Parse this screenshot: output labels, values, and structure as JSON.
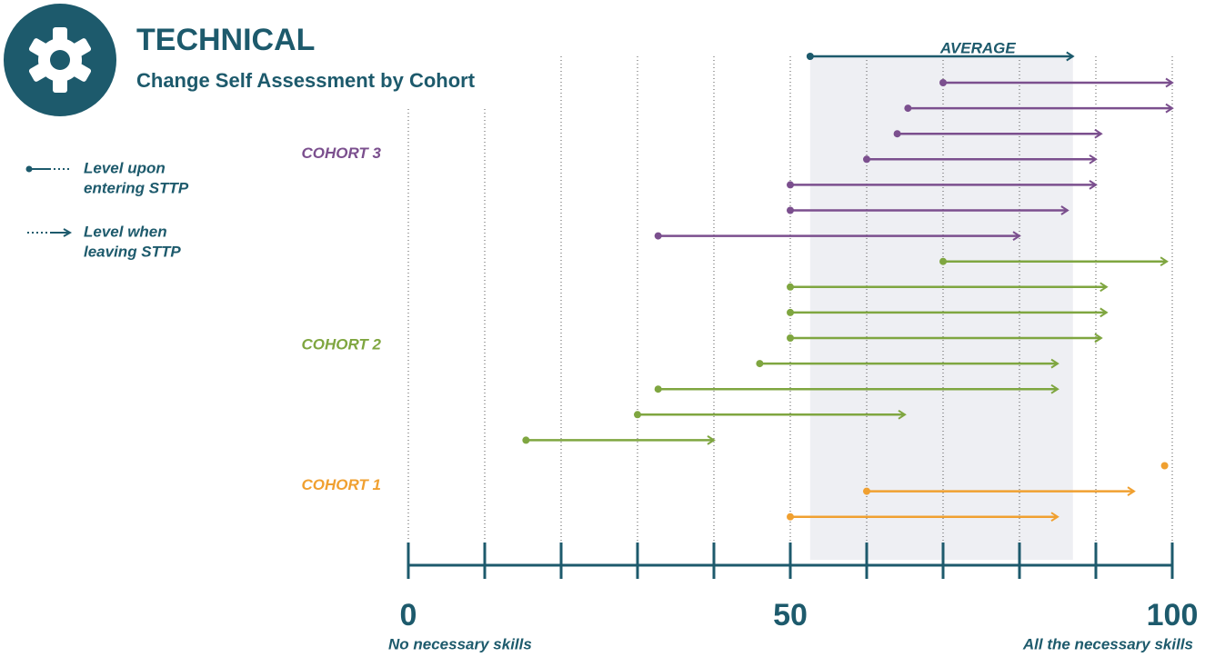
{
  "chart_data": {
    "type": "arrow",
    "title": "TECHNICAL",
    "subtitle": "Change Self Assessment by Cohort",
    "legend_items": [
      [
        "Level upon",
        "entering STTP"
      ],
      [
        "Level when",
        "leaving STTP"
      ]
    ],
    "legend_color": "#1d5a6c",
    "average": {
      "label": "AVERAGE",
      "start": 52.6,
      "end": 87,
      "color": "#1d5a6c",
      "band_color": "#eeeff3"
    },
    "series": [
      {
        "name": "COHORT 3",
        "color": "#7b4f8e",
        "start": [
          70,
          65.4,
          64,
          60,
          50,
          50,
          32.7
        ],
        "end": [
          100,
          100,
          90.7,
          90,
          90,
          86.3,
          80
        ]
      },
      {
        "name": "COHORT 2",
        "color": "#7fa640",
        "start": [
          70,
          50,
          50,
          50,
          46,
          32.7,
          30,
          15.4
        ],
        "end": [
          99.3,
          91.4,
          91.4,
          90.7,
          85,
          85,
          65,
          40
        ]
      },
      {
        "name": "COHORT 1",
        "color": "#f0a030",
        "start": [
          99,
          60,
          50
        ],
        "end": [
          99,
          95,
          85
        ]
      }
    ],
    "xlim": [
      0,
      100
    ],
    "xticks": [
      0,
      50,
      100
    ],
    "minor_xticks": [
      10,
      20,
      30,
      40,
      60,
      70,
      80,
      90
    ],
    "xlabel_left": "No necessary skills",
    "xlabel_right": "All the necessary skills",
    "axis_color": "#1d5a6c",
    "grid": true
  }
}
